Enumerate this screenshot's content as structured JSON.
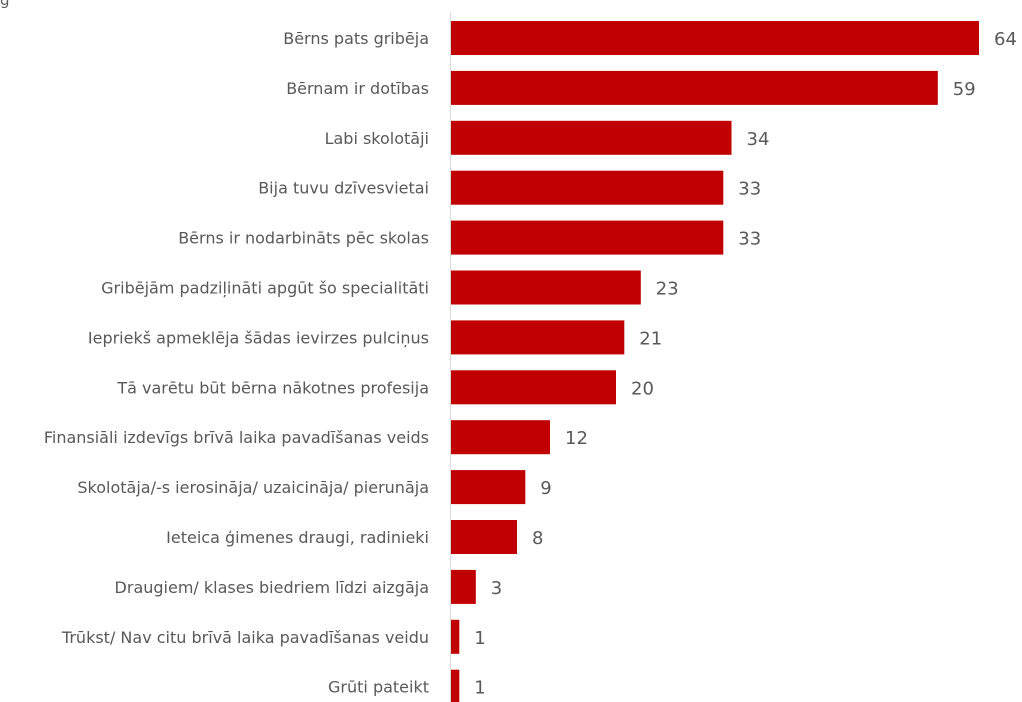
{
  "chart_data": {
    "type": "bar",
    "orientation": "horizontal",
    "title": "",
    "top_text_fragment": "g",
    "categories": [
      "Bērns pats gribēja",
      "Bērnam ir dotības",
      "Labi skolotāji",
      "Bija tuvu dzīvesvietai",
      "Bērns ir nodarbināts pēc skolas",
      "Gribējām padziļināti apgūt šo specialitāti",
      "Iepriekš apmeklēja šādas ievirzes pulciņus",
      "Tā varētu būt bērna nākotnes profesija",
      "Finansiāli izdevīgs brīvā laika pavadīšanas veids",
      "Skolotāja/-s ierosināja/ uzaicināja/ pierunāja",
      "Ieteica ģimenes draugi, radinieki",
      "Draugiem/ klases biedriem līdzi aizgāja",
      "Trūkst/ Nav citu brīvā laika pavadīšanas veidu",
      "Grūti pateikt"
    ],
    "values": [
      64,
      59,
      34,
      33,
      33,
      23,
      21,
      20,
      12,
      9,
      8,
      3,
      1,
      1
    ],
    "xlim": [
      0,
      64
    ],
    "grid": false,
    "legend": "none",
    "data_labels": true,
    "colors": {
      "bar": "#C00000",
      "axis": "#D9D9D9",
      "text": "#595959"
    }
  }
}
